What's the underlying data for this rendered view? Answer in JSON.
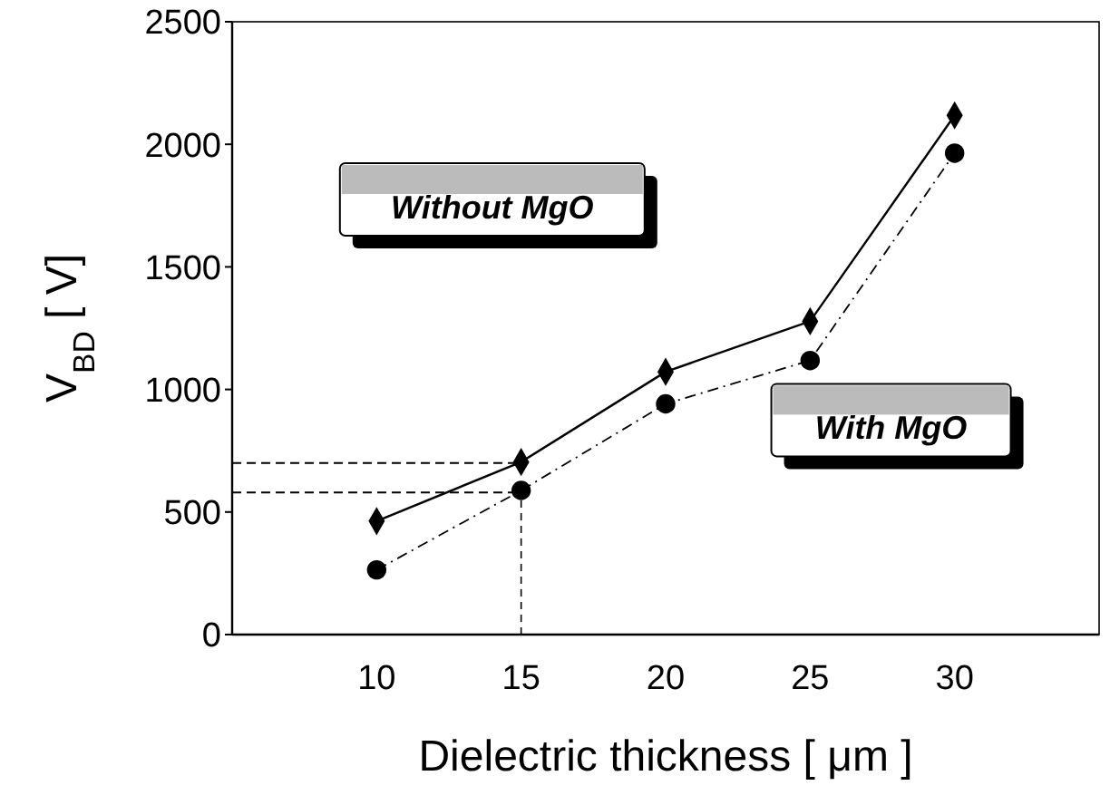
{
  "chart_data": {
    "type": "line",
    "xlabel": "Dielectric thickness [ μm ]",
    "ylabel": "V$_{BD}$ [ V]",
    "x": [
      10,
      15,
      20,
      25,
      30
    ],
    "xlim": [
      5,
      35
    ],
    "xticks": [
      10,
      15,
      20,
      25,
      30
    ],
    "ylim": [
      0,
      2500
    ],
    "yticks": [
      0,
      500,
      1000,
      1500,
      2000,
      2500
    ],
    "grid": false,
    "series": [
      {
        "name": "Without MgO",
        "color": "#000000",
        "marker": "diamond",
        "line_style": "solid",
        "values": [
          463,
          704,
          1072,
          1278,
          2118
        ]
      },
      {
        "name": "With MgO",
        "color": "#000000",
        "marker": "circle",
        "line_style": "dashed",
        "values": [
          264,
          588,
          941,
          1118,
          1964
        ]
      }
    ],
    "ref_lines": [
      {
        "axis": "y",
        "value": 700,
        "line_style": "dashed"
      },
      {
        "axis": "y",
        "value": 580,
        "line_style": "dashed"
      },
      {
        "axis": "x",
        "value": 15,
        "line_style": "dashed"
      }
    ]
  }
}
